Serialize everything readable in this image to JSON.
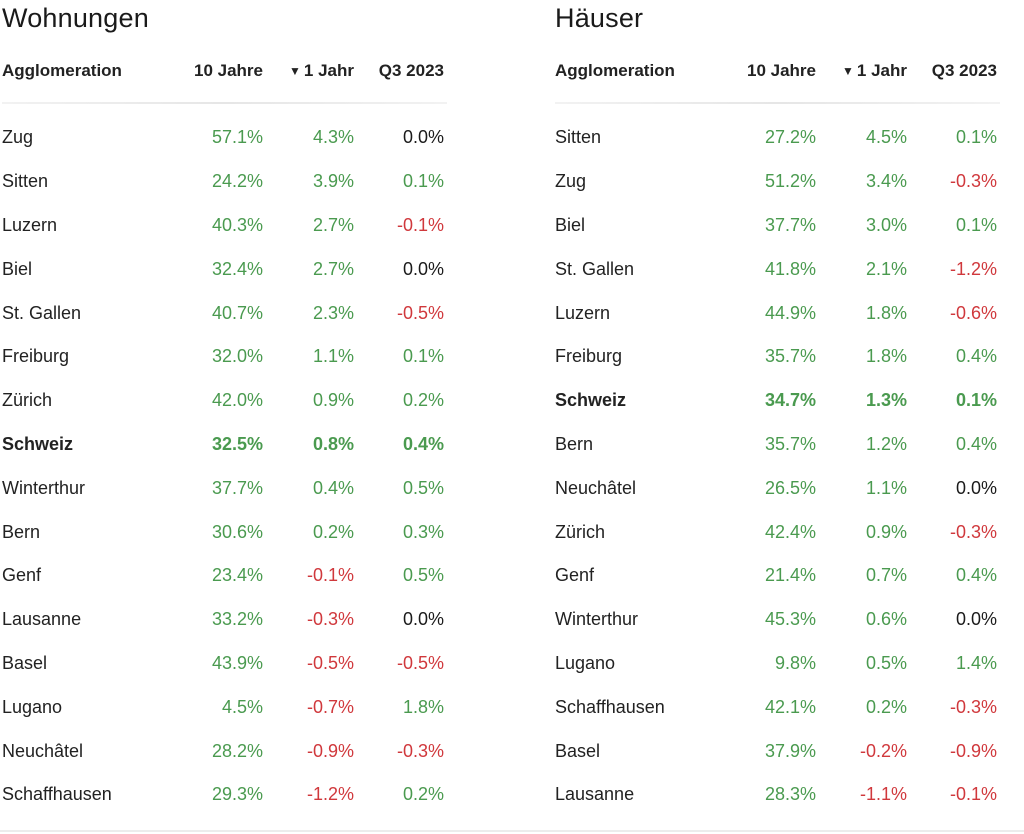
{
  "colors": {
    "positive": "#4a9a4f",
    "negative": "#d0383c",
    "neutral": "#1a1a1a"
  },
  "sort_icon": "sort-descending-icon",
  "panels": [
    {
      "title": "Wohnungen",
      "headers": {
        "name": "Agglomeration",
        "ten": "10 Jahre",
        "one": "1 Jahr",
        "q3": "Q3 2023",
        "sort_glyph": "▼"
      },
      "rows": [
        {
          "name": "Zug",
          "ten": "57.1%",
          "one": "4.3%",
          "q3": "0.0%",
          "bold": false
        },
        {
          "name": "Sitten",
          "ten": "24.2%",
          "one": "3.9%",
          "q3": "0.1%",
          "bold": false
        },
        {
          "name": "Luzern",
          "ten": "40.3%",
          "one": "2.7%",
          "q3": "-0.1%",
          "bold": false
        },
        {
          "name": "Biel",
          "ten": "32.4%",
          "one": "2.7%",
          "q3": "0.0%",
          "bold": false
        },
        {
          "name": "St. Gallen",
          "ten": "40.7%",
          "one": "2.3%",
          "q3": "-0.5%",
          "bold": false
        },
        {
          "name": "Freiburg",
          "ten": "32.0%",
          "one": "1.1%",
          "q3": "0.1%",
          "bold": false
        },
        {
          "name": "Zürich",
          "ten": "42.0%",
          "one": "0.9%",
          "q3": "0.2%",
          "bold": false
        },
        {
          "name": "Schweiz",
          "ten": "32.5%",
          "one": "0.8%",
          "q3": "0.4%",
          "bold": true
        },
        {
          "name": "Winterthur",
          "ten": "37.7%",
          "one": "0.4%",
          "q3": "0.5%",
          "bold": false
        },
        {
          "name": "Bern",
          "ten": "30.6%",
          "one": "0.2%",
          "q3": "0.3%",
          "bold": false
        },
        {
          "name": "Genf",
          "ten": "23.4%",
          "one": "-0.1%",
          "q3": "0.5%",
          "bold": false
        },
        {
          "name": "Lausanne",
          "ten": "33.2%",
          "one": "-0.3%",
          "q3": "0.0%",
          "bold": false
        },
        {
          "name": "Basel",
          "ten": "43.9%",
          "one": "-0.5%",
          "q3": "-0.5%",
          "bold": false
        },
        {
          "name": "Lugano",
          "ten": "4.5%",
          "one": "-0.7%",
          "q3": "1.8%",
          "bold": false
        },
        {
          "name": "Neuchâtel",
          "ten": "28.2%",
          "one": "-0.9%",
          "q3": "-0.3%",
          "bold": false
        },
        {
          "name": "Schaffhausen",
          "ten": "29.3%",
          "one": "-1.2%",
          "q3": "0.2%",
          "bold": false
        }
      ]
    },
    {
      "title": "Häuser",
      "headers": {
        "name": "Agglomeration",
        "ten": "10 Jahre",
        "one": "1 Jahr",
        "q3": "Q3 2023",
        "sort_glyph": "▼"
      },
      "rows": [
        {
          "name": "Sitten",
          "ten": "27.2%",
          "one": "4.5%",
          "q3": "0.1%",
          "bold": false
        },
        {
          "name": "Zug",
          "ten": "51.2%",
          "one": "3.4%",
          "q3": "-0.3%",
          "bold": false
        },
        {
          "name": "Biel",
          "ten": "37.7%",
          "one": "3.0%",
          "q3": "0.1%",
          "bold": false
        },
        {
          "name": "St. Gallen",
          "ten": "41.8%",
          "one": "2.1%",
          "q3": "-1.2%",
          "bold": false
        },
        {
          "name": "Luzern",
          "ten": "44.9%",
          "one": "1.8%",
          "q3": "-0.6%",
          "bold": false
        },
        {
          "name": "Freiburg",
          "ten": "35.7%",
          "one": "1.8%",
          "q3": "0.4%",
          "bold": false
        },
        {
          "name": "Schweiz",
          "ten": "34.7%",
          "one": "1.3%",
          "q3": "0.1%",
          "bold": true
        },
        {
          "name": "Bern",
          "ten": "35.7%",
          "one": "1.2%",
          "q3": "0.4%",
          "bold": false
        },
        {
          "name": "Neuchâtel",
          "ten": "26.5%",
          "one": "1.1%",
          "q3": "0.0%",
          "bold": false
        },
        {
          "name": "Zürich",
          "ten": "42.4%",
          "one": "0.9%",
          "q3": "-0.3%",
          "bold": false
        },
        {
          "name": "Genf",
          "ten": "21.4%",
          "one": "0.7%",
          "q3": "0.4%",
          "bold": false
        },
        {
          "name": "Winterthur",
          "ten": "45.3%",
          "one": "0.6%",
          "q3": "0.0%",
          "bold": false
        },
        {
          "name": "Lugano",
          "ten": "9.8%",
          "one": "0.5%",
          "q3": "1.4%",
          "bold": false
        },
        {
          "name": "Schaffhausen",
          "ten": "42.1%",
          "one": "0.2%",
          "q3": "-0.3%",
          "bold": false
        },
        {
          "name": "Basel",
          "ten": "37.9%",
          "one": "-0.2%",
          "q3": "-0.9%",
          "bold": false
        },
        {
          "name": "Lausanne",
          "ten": "28.3%",
          "one": "-1.1%",
          "q3": "-0.1%",
          "bold": false
        }
      ]
    }
  ]
}
